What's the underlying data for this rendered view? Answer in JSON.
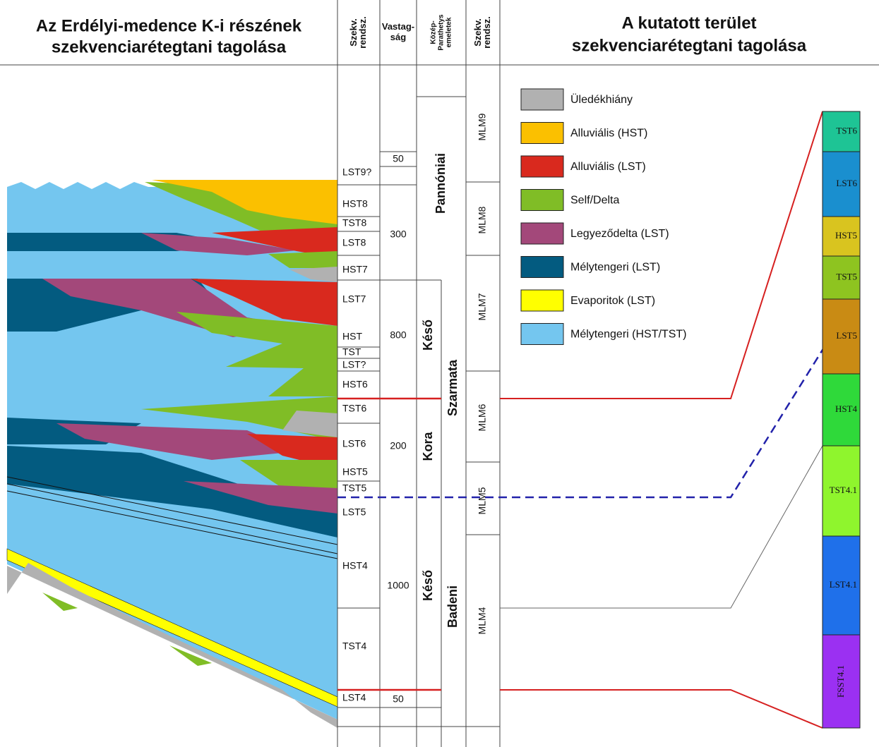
{
  "header": {
    "left_title": [
      "Az Erdélyi-medence K-i részének",
      "szekvenciarétegtani tagolása"
    ],
    "columns": [
      [
        "Szekv.",
        "rendsz."
      ],
      [
        "Vastag-",
        "ság"
      ],
      [
        "Közép-",
        "Parathetys",
        "emeletek"
      ],
      [
        "Szekv.",
        "rendsz."
      ]
    ],
    "right_title": [
      "A kutatott terület",
      "szekvenciarétegtani tagolása"
    ]
  },
  "sequences": [
    "LST9?",
    "HST8",
    "TST8",
    "LST8",
    "HST7",
    "LST7",
    "HST",
    "TST",
    "LST?",
    "HST6",
    "TST6",
    "LST6",
    "HST5",
    "TST5",
    "LST5",
    "HST4",
    "TST4",
    "LST4"
  ],
  "thickness": [
    "50",
    "300",
    "800",
    "200",
    "1000",
    "50"
  ],
  "stages": [
    "Pannóniai",
    "Késő",
    "Kora",
    "Szarmata",
    "Késő",
    "Badeni"
  ],
  "mlm": [
    "MLM9",
    "MLM8",
    "MLM7",
    "MLM6",
    "MLM5",
    "MLM4"
  ],
  "legend": [
    {
      "label": "Üledékhiány",
      "color": "#b1b1b1"
    },
    {
      "label": "Alluviális (HST)",
      "color": "#fbc000"
    },
    {
      "label": "Alluviális (LST)",
      "color": "#d9291e"
    },
    {
      "label": "Self/Delta",
      "color": "#80bd26"
    },
    {
      "label": "Legyeződelta (LST)",
      "color": "#a3487a"
    },
    {
      "label": "Mélytengeri (LST)",
      "color": "#035b80"
    },
    {
      "label": "Evaporitok (LST)",
      "color": "#ffff00"
    },
    {
      "label": "Mélytengeri (HST/TST)",
      "color": "#74c6ef"
    }
  ],
  "column": [
    {
      "label": "TST6",
      "color": "#1ec495"
    },
    {
      "label": "LST6",
      "color": "#1a8fcf"
    },
    {
      "label": "HST5",
      "color": "#d9c41f"
    },
    {
      "label": "TST5",
      "color": "#8ec420"
    },
    {
      "label": "LST5",
      "color": "#c98b14"
    },
    {
      "label": "HST4",
      "color": "#2fd93a"
    },
    {
      "label": "TST4.1",
      "color": "#8ff52d"
    },
    {
      "label": "LST4.1",
      "color": "#1f70ea"
    },
    {
      "label": "FSST4.1",
      "color": "#9b30f2"
    }
  ]
}
